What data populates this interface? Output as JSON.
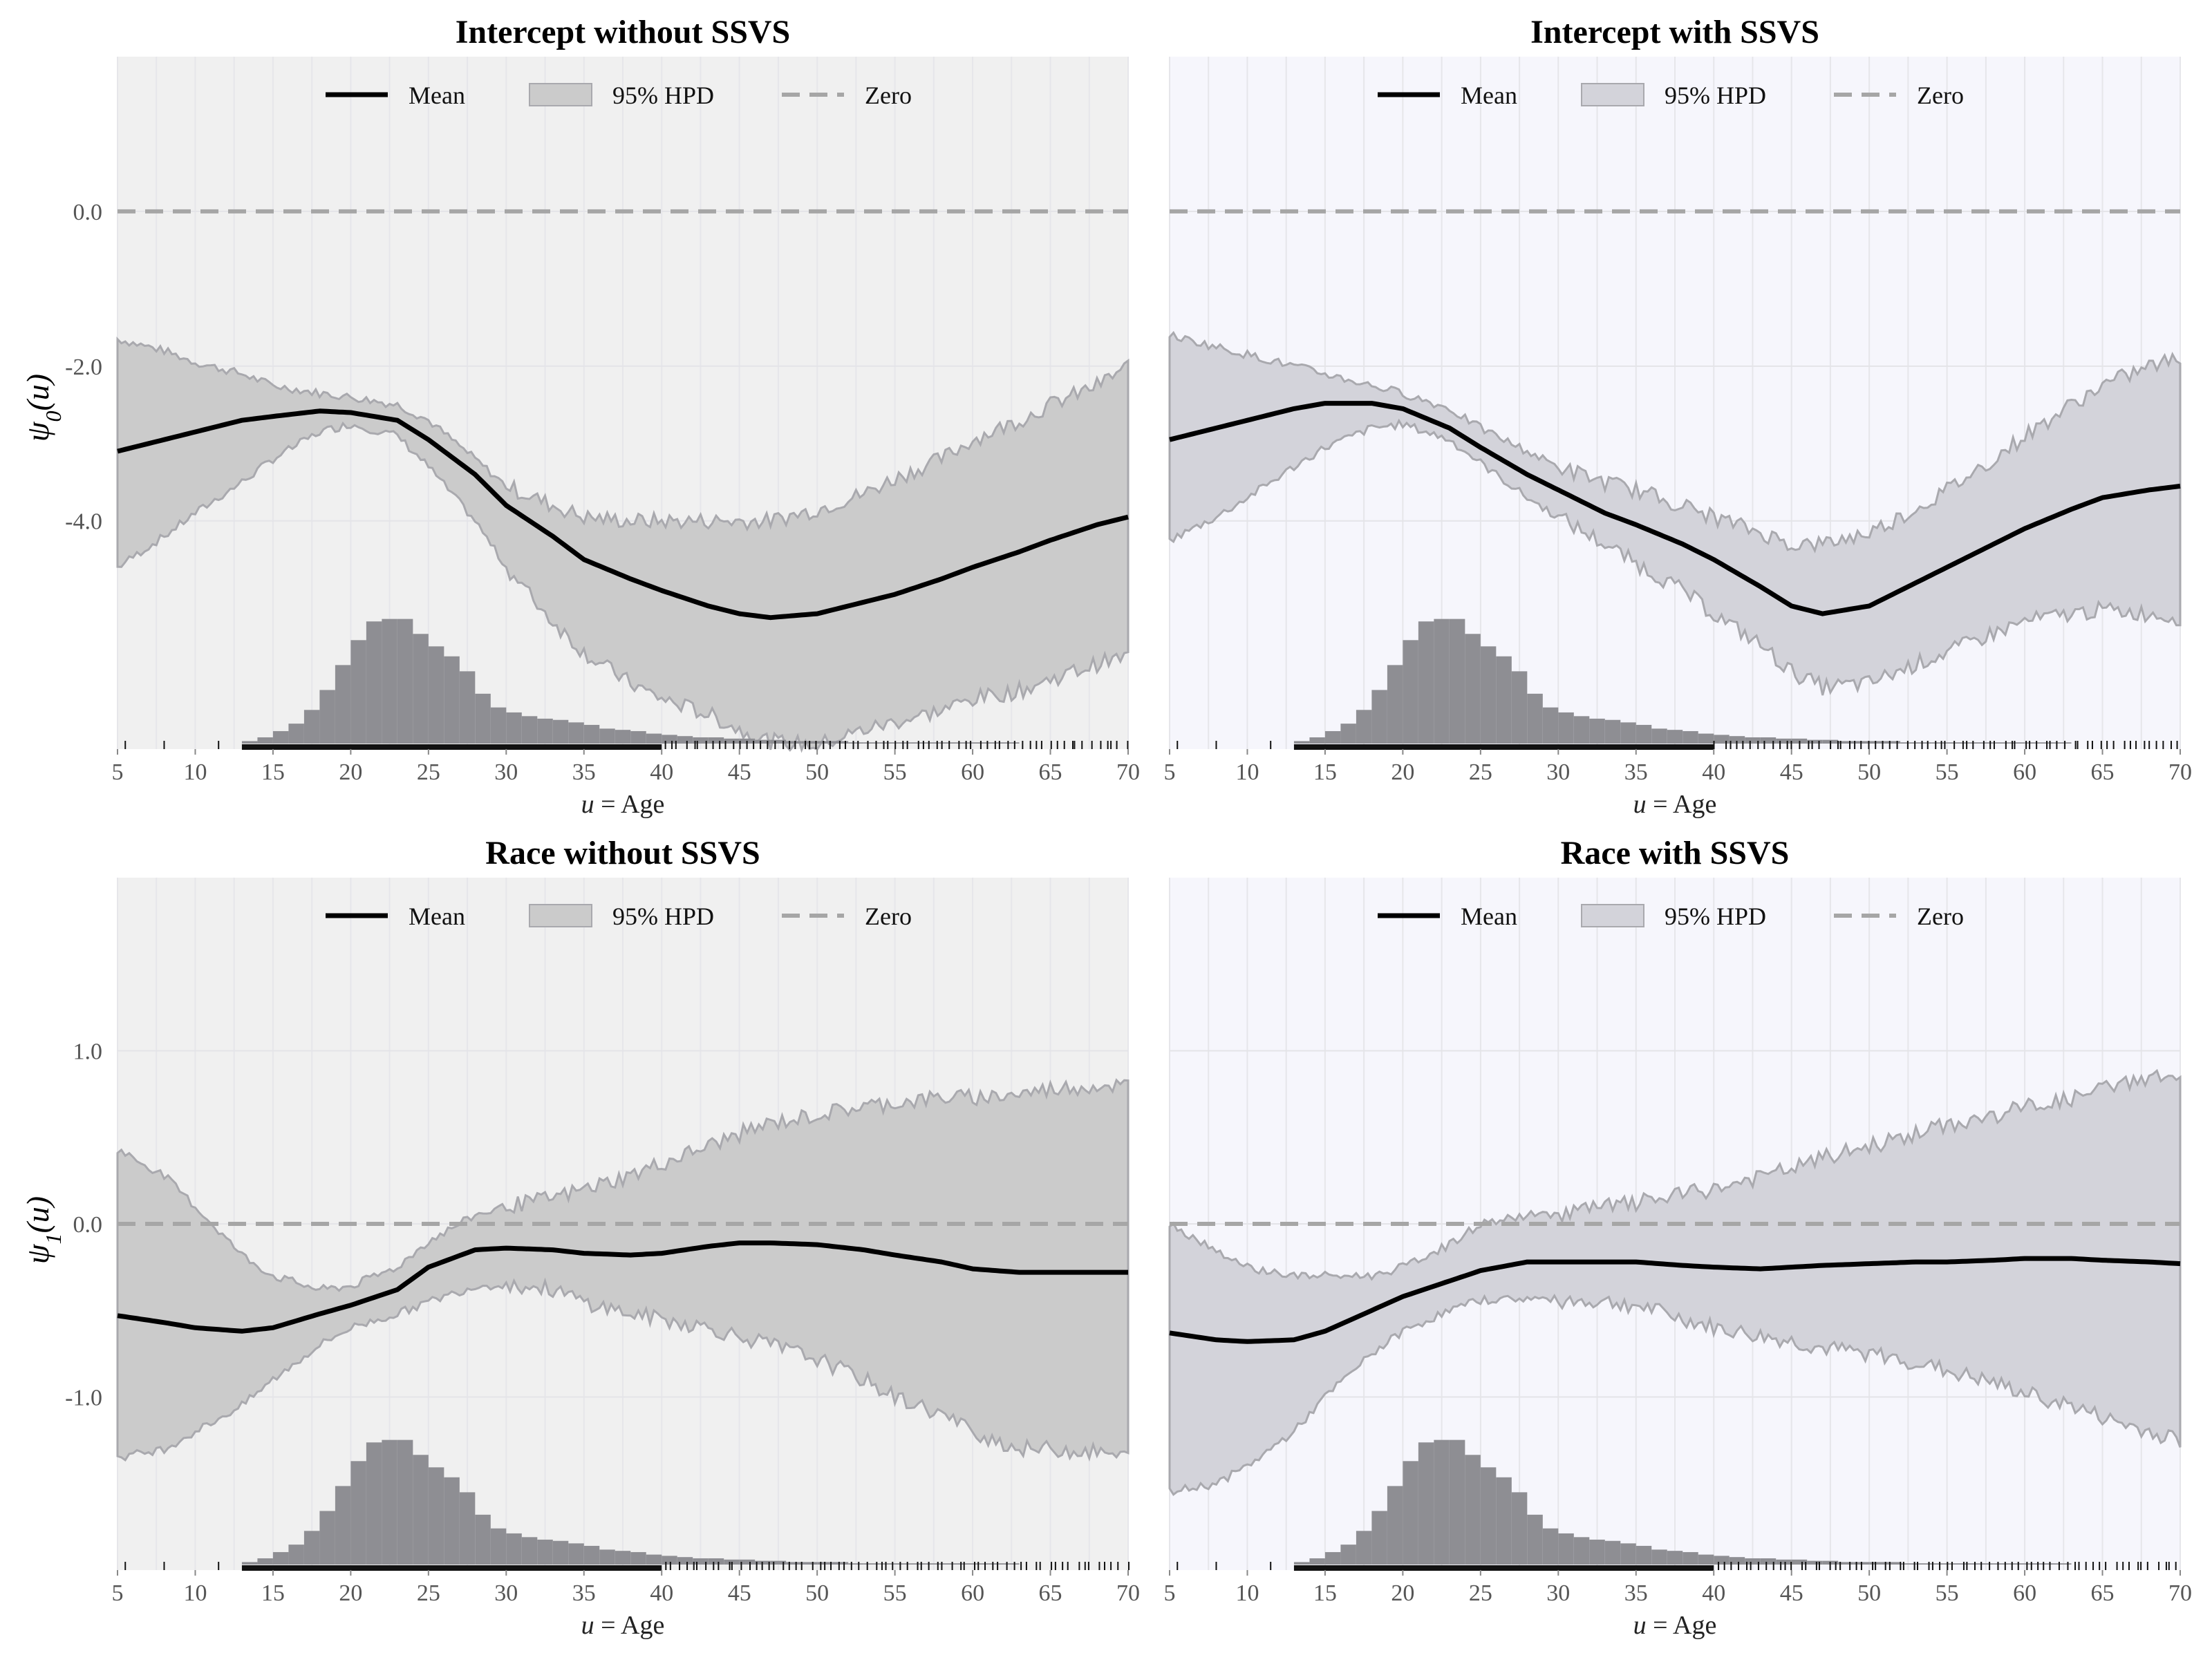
{
  "colors": {
    "panel_bg_without": "#f0f0f0",
    "panel_bg_with": "#f6f6fc",
    "band_fill_without": "#cbcbcb",
    "band_fill_with": "#d3d3da",
    "band_edge": "#a9a9ae",
    "mean_line": "#000000",
    "zero_line": "#a6a6a6",
    "histogram": "#8e8e93",
    "rug": "#111111"
  },
  "legend": {
    "mean": "Mean",
    "hpd": "95% HPD",
    "zero": "Zero"
  },
  "x_axis": {
    "label_var": "u",
    "label_rest": "= Age",
    "ticks": [
      5,
      10,
      15,
      20,
      25,
      30,
      35,
      40,
      45,
      50,
      55,
      60,
      65,
      70
    ],
    "lim": [
      5,
      70
    ]
  },
  "row_labels": [
    {
      "symbol": "ψ",
      "sub": "0",
      "arg": "(u)"
    },
    {
      "symbol": "ψ",
      "sub": "1",
      "arg": "(u)"
    }
  ],
  "chart_data": [
    {
      "type": "line",
      "title": "Intercept without SSVS",
      "style": "without",
      "ylim": [
        -6.95,
        2.0
      ],
      "yticks": [
        0.0,
        -2.0,
        -4.0
      ],
      "ytick_labels": [
        "0.0",
        "-2.0",
        "-4.0"
      ],
      "x": [
        5,
        8,
        10,
        13,
        15,
        18,
        20,
        23,
        25,
        28,
        30,
        33,
        35,
        38,
        40,
        43,
        45,
        47,
        50,
        53,
        55,
        58,
        60,
        63,
        65,
        68,
        70
      ],
      "mean": [
        -3.1,
        -2.95,
        -2.85,
        -2.7,
        -2.65,
        -2.58,
        -2.6,
        -2.7,
        -2.95,
        -3.4,
        -3.8,
        -4.2,
        -4.5,
        -4.75,
        -4.9,
        -5.1,
        -5.2,
        -5.25,
        -5.2,
        -5.05,
        -4.95,
        -4.75,
        -4.6,
        -4.4,
        -4.25,
        -4.05,
        -3.95
      ],
      "lower": [
        -4.6,
        -4.2,
        -3.9,
        -3.5,
        -3.2,
        -2.85,
        -2.75,
        -2.9,
        -3.3,
        -4.0,
        -4.6,
        -5.3,
        -5.7,
        -6.1,
        -6.3,
        -6.5,
        -6.7,
        -6.85,
        -6.9,
        -6.7,
        -6.6,
        -6.45,
        -6.3,
        -6.2,
        -6.05,
        -5.85,
        -5.75
      ],
      "upper": [
        -1.65,
        -1.8,
        -1.95,
        -2.1,
        -2.25,
        -2.35,
        -2.4,
        -2.5,
        -2.7,
        -3.2,
        -3.55,
        -3.8,
        -3.95,
        -4.0,
        -4.0,
        -4.0,
        -4.0,
        -4.0,
        -3.85,
        -3.65,
        -3.45,
        -3.2,
        -2.95,
        -2.7,
        -2.5,
        -2.25,
        -2.0
      ]
    },
    {
      "type": "line",
      "title": "Intercept with SSVS",
      "style": "with",
      "ylim": [
        -6.95,
        2.0
      ],
      "yticks": [
        0.0,
        -2.0,
        -4.0
      ],
      "ytick_labels": [
        "",
        "",
        ""
      ],
      "x": [
        5,
        8,
        10,
        13,
        15,
        18,
        20,
        23,
        25,
        28,
        30,
        33,
        35,
        38,
        40,
        43,
        45,
        47,
        50,
        53,
        55,
        58,
        60,
        63,
        65,
        68,
        70
      ],
      "mean": [
        -2.95,
        -2.8,
        -2.7,
        -2.55,
        -2.48,
        -2.48,
        -2.55,
        -2.8,
        -3.05,
        -3.4,
        -3.6,
        -3.9,
        -4.05,
        -4.3,
        -4.5,
        -4.85,
        -5.1,
        -5.2,
        -5.1,
        -4.8,
        -4.6,
        -4.3,
        -4.1,
        -3.85,
        -3.7,
        -3.6,
        -3.55
      ],
      "lower": [
        -4.25,
        -3.95,
        -3.7,
        -3.3,
        -3.05,
        -2.8,
        -2.75,
        -2.95,
        -3.25,
        -3.7,
        -3.95,
        -4.3,
        -4.55,
        -4.9,
        -5.2,
        -5.6,
        -5.95,
        -6.15,
        -6.1,
        -5.85,
        -5.7,
        -5.45,
        -5.3,
        -5.2,
        -5.15,
        -5.2,
        -5.25
      ],
      "upper": [
        -1.6,
        -1.75,
        -1.85,
        -2.0,
        -2.1,
        -2.25,
        -2.35,
        -2.55,
        -2.8,
        -3.1,
        -3.3,
        -3.5,
        -3.6,
        -3.8,
        -3.95,
        -4.15,
        -4.3,
        -4.3,
        -4.15,
        -3.85,
        -3.6,
        -3.2,
        -2.9,
        -2.5,
        -2.25,
        -2.0,
        -1.9
      ]
    },
    {
      "type": "line",
      "title": "Race without SSVS",
      "style": "without",
      "ylim": [
        -2.0,
        2.0
      ],
      "yticks": [
        1.0,
        0.0,
        -1.0
      ],
      "ytick_labels": [
        "1.0",
        "0.0",
        "-1.0"
      ],
      "x": [
        5,
        8,
        10,
        13,
        15,
        18,
        20,
        23,
        25,
        28,
        30,
        33,
        35,
        38,
        40,
        43,
        45,
        47,
        50,
        53,
        55,
        58,
        60,
        63,
        65,
        68,
        70
      ],
      "mean": [
        -0.53,
        -0.57,
        -0.6,
        -0.62,
        -0.6,
        -0.52,
        -0.47,
        -0.38,
        -0.25,
        -0.15,
        -0.14,
        -0.15,
        -0.17,
        -0.18,
        -0.17,
        -0.13,
        -0.11,
        -0.11,
        -0.12,
        -0.15,
        -0.18,
        -0.22,
        -0.26,
        -0.28,
        -0.28,
        -0.28,
        -0.28
      ],
      "lower": [
        -1.35,
        -1.3,
        -1.2,
        -1.05,
        -0.9,
        -0.7,
        -0.6,
        -0.52,
        -0.45,
        -0.36,
        -0.35,
        -0.38,
        -0.45,
        -0.52,
        -0.55,
        -0.6,
        -0.65,
        -0.7,
        -0.78,
        -0.9,
        -1.0,
        -1.1,
        -1.2,
        -1.3,
        -1.3,
        -1.32,
        -1.35
      ],
      "upper": [
        0.43,
        0.28,
        0.1,
        -0.18,
        -0.3,
        -0.38,
        -0.36,
        -0.25,
        -0.1,
        0.05,
        0.1,
        0.15,
        0.2,
        0.28,
        0.35,
        0.45,
        0.52,
        0.58,
        0.63,
        0.68,
        0.7,
        0.73,
        0.73,
        0.75,
        0.78,
        0.8,
        0.8
      ]
    },
    {
      "type": "line",
      "title": "Race with SSVS",
      "style": "with",
      "ylim": [
        -2.0,
        2.0
      ],
      "yticks": [
        1.0,
        0.0,
        -1.0
      ],
      "ytick_labels": [
        "",
        "",
        ""
      ],
      "x": [
        5,
        8,
        10,
        13,
        15,
        18,
        20,
        23,
        25,
        28,
        30,
        33,
        35,
        38,
        40,
        43,
        45,
        47,
        50,
        53,
        55,
        58,
        60,
        63,
        65,
        68,
        70
      ],
      "mean": [
        -0.63,
        -0.67,
        -0.68,
        -0.67,
        -0.62,
        -0.5,
        -0.42,
        -0.33,
        -0.27,
        -0.22,
        -0.22,
        -0.22,
        -0.22,
        -0.24,
        -0.25,
        -0.26,
        -0.25,
        -0.24,
        -0.23,
        -0.22,
        -0.22,
        -0.21,
        -0.2,
        -0.2,
        -0.21,
        -0.22,
        -0.23
      ],
      "lower": [
        -1.55,
        -1.5,
        -1.4,
        -1.2,
        -1.0,
        -0.75,
        -0.62,
        -0.5,
        -0.44,
        -0.43,
        -0.44,
        -0.45,
        -0.47,
        -0.55,
        -0.6,
        -0.65,
        -0.68,
        -0.72,
        -0.75,
        -0.8,
        -0.85,
        -0.92,
        -0.98,
        -1.05,
        -1.12,
        -1.2,
        -1.25
      ],
      "upper": [
        0.0,
        -0.15,
        -0.25,
        -0.3,
        -0.3,
        -0.3,
        -0.25,
        -0.12,
        0.0,
        0.05,
        0.06,
        0.1,
        0.12,
        0.17,
        0.2,
        0.27,
        0.32,
        0.38,
        0.45,
        0.52,
        0.57,
        0.62,
        0.68,
        0.72,
        0.78,
        0.85,
        0.85
      ]
    }
  ],
  "age_histogram": {
    "note_bins": "counts relative, bins from 12 to 70 by 1 year",
    "edges_start": 12,
    "bin_width": 1,
    "rel_heights": [
      0.0,
      0.02,
      0.05,
      0.1,
      0.16,
      0.27,
      0.43,
      0.63,
      0.83,
      0.98,
      1.0,
      1.0,
      0.88,
      0.78,
      0.7,
      0.58,
      0.4,
      0.29,
      0.25,
      0.22,
      0.2,
      0.19,
      0.17,
      0.15,
      0.12,
      0.11,
      0.1,
      0.08,
      0.07,
      0.06,
      0.05,
      0.05,
      0.04,
      0.04,
      0.03,
      0.03,
      0.02,
      0.02,
      0.02,
      0.02,
      0.01,
      0.01,
      0.01,
      0.01,
      0.01,
      0.01,
      0.01,
      0.01,
      0.01,
      0.01,
      0.01,
      0.0,
      0.0,
      0.0,
      0.0,
      0.0,
      0.0,
      0.0
    ]
  }
}
